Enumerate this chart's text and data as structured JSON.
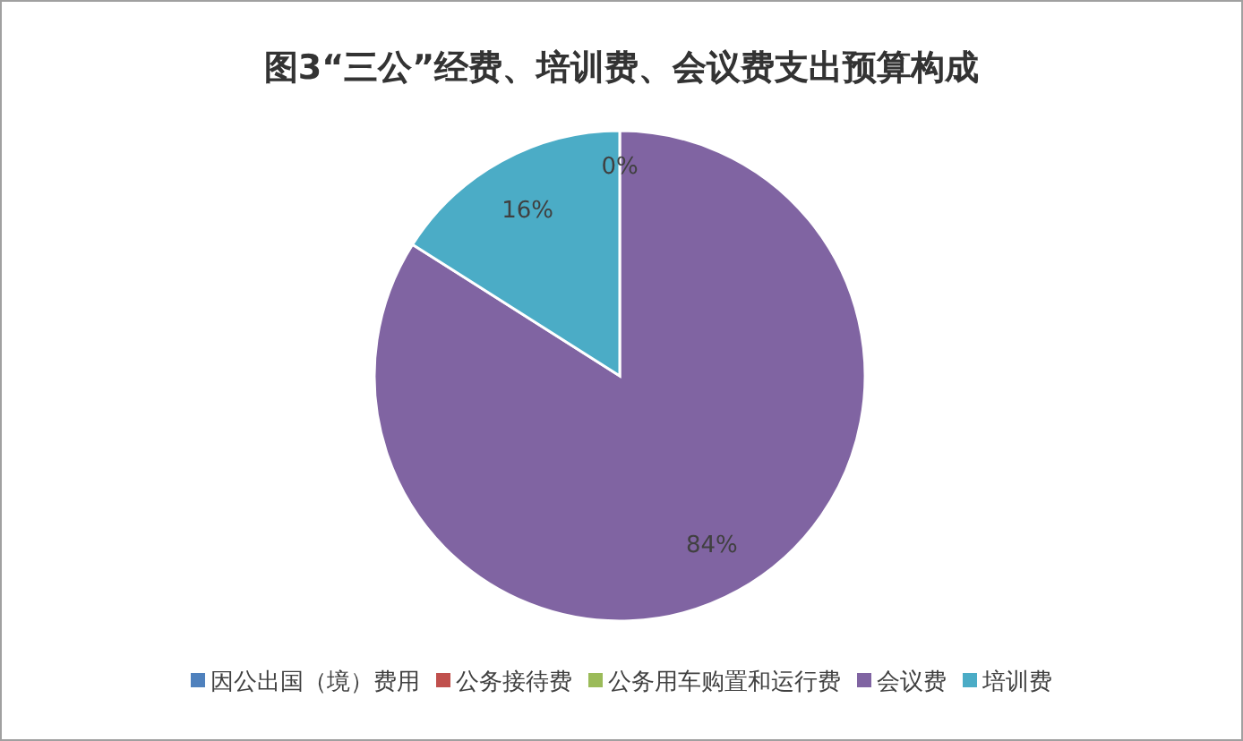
{
  "chart_data": {
    "type": "pie",
    "title": "图3“三公”经费、培训费、会议费支出预算构成",
    "categories": [
      "因公出国（境）费用",
      "公务接待费",
      "公务用车购置和运行费",
      "会议费",
      "培训费"
    ],
    "values": [
      0,
      0,
      0,
      84,
      16
    ],
    "colors": [
      "#4f81bd",
      "#c0504d",
      "#9bbb59",
      "#8064a2",
      "#4bacc6"
    ],
    "value_labels": [
      null,
      null,
      "0%",
      "84%",
      "16%"
    ],
    "legend": "bottom"
  }
}
